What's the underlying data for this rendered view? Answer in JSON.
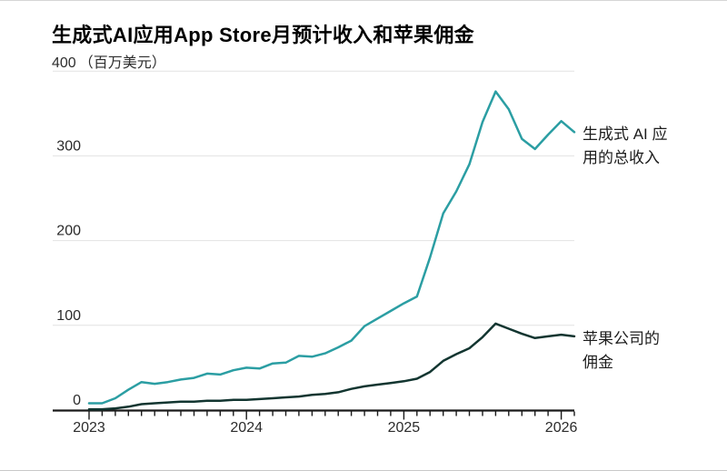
{
  "title": "生成式AI应用App Store月预计收入和苹果佣金",
  "y_axis_top_label": "400",
  "y_axis_unit": "（百万美元）",
  "chart_data": {
    "type": "line",
    "title": "生成式AI应用App Store月预计收入和苹果佣金",
    "ylabel": "百万美元",
    "ylim": [
      0,
      400
    ],
    "y_ticks": [
      0,
      100,
      200,
      300,
      400
    ],
    "grid": "horizontal",
    "legend_position": "right-annotations",
    "x_tick_years": [
      "2023",
      "2024",
      "2025",
      "2026"
    ],
    "categories": [
      "2023-01",
      "2023-02",
      "2023-03",
      "2023-04",
      "2023-05",
      "2023-06",
      "2023-07",
      "2023-08",
      "2023-09",
      "2023-10",
      "2023-11",
      "2023-12",
      "2024-01",
      "2024-02",
      "2024-03",
      "2024-04",
      "2024-05",
      "2024-06",
      "2024-07",
      "2024-08",
      "2024-09",
      "2024-10",
      "2024-11",
      "2024-12",
      "2025-01",
      "2025-02",
      "2025-03",
      "2025-04",
      "2025-05",
      "2025-06",
      "2025-07",
      "2025-08",
      "2025-09",
      "2025-10",
      "2025-11",
      "2025-12",
      "2026-01",
      "2026-02"
    ],
    "series": [
      {
        "name": "生成式 AI 应用的总收入",
        "color": "#2b9ea3",
        "values": [
          8,
          8,
          14,
          24,
          33,
          31,
          33,
          36,
          38,
          43,
          42,
          47,
          50,
          49,
          55,
          56,
          64,
          63,
          67,
          74,
          82,
          99,
          108,
          117,
          126,
          134,
          180,
          232,
          258,
          290,
          340,
          376,
          355,
          320,
          308,
          325,
          341,
          328
        ]
      },
      {
        "name": "苹果公司的佣金",
        "color": "#123530",
        "values": [
          1,
          1,
          2,
          4,
          7,
          8,
          9,
          10,
          10,
          11,
          11,
          12,
          12,
          13,
          14,
          15,
          16,
          18,
          19,
          21,
          25,
          28,
          30,
          32,
          34,
          37,
          45,
          58,
          66,
          73,
          86,
          102,
          96,
          90,
          85,
          87,
          89,
          87
        ]
      }
    ],
    "annotations": [
      {
        "label_line1": "生成式 AI 应",
        "label_line2": "用的总收入"
      },
      {
        "label_line1": "苹果公司的",
        "label_line2": "佣金"
      }
    ],
    "colors": {
      "grid": "#e2e2e2",
      "axis": "#1a1a1a",
      "revenue_line": "#2b9ea3",
      "commission_line": "#123530"
    }
  }
}
